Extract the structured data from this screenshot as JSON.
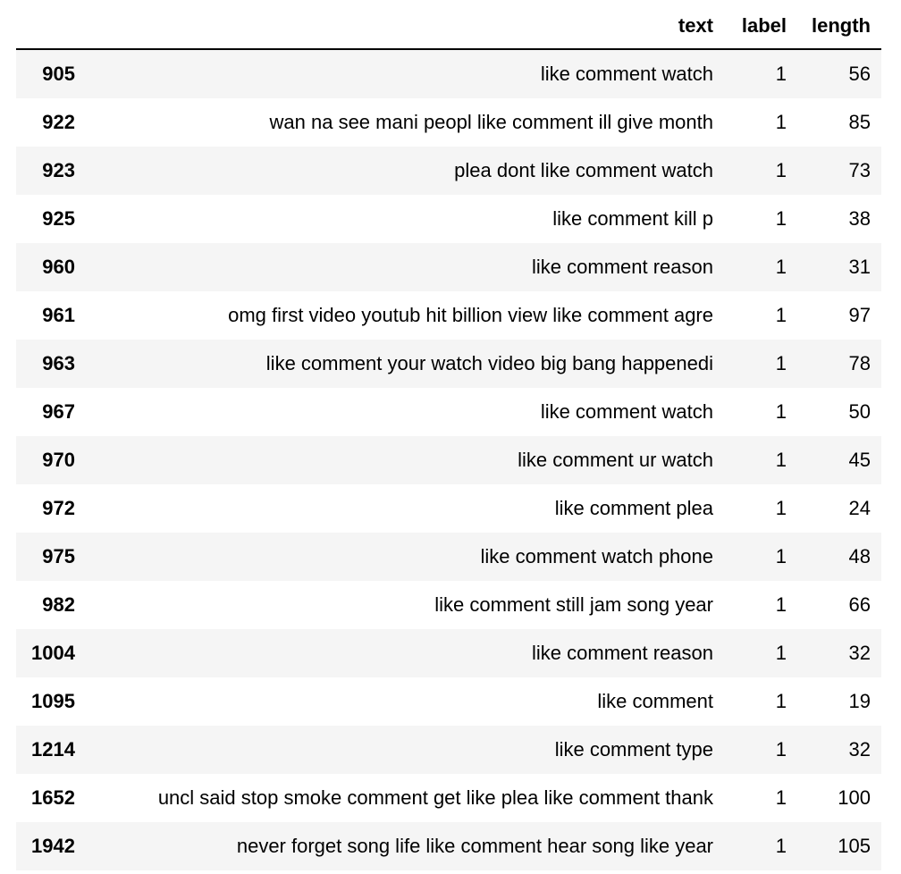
{
  "columns": {
    "index": "",
    "text": "text",
    "label": "label",
    "length": "length"
  },
  "rows": [
    {
      "index": "905",
      "text": "like comment watch",
      "label": "1",
      "length": "56"
    },
    {
      "index": "922",
      "text": "wan na see mani peopl like comment ill give month",
      "label": "1",
      "length": "85"
    },
    {
      "index": "923",
      "text": "plea dont like comment watch",
      "label": "1",
      "length": "73"
    },
    {
      "index": "925",
      "text": "like comment kill p",
      "label": "1",
      "length": "38"
    },
    {
      "index": "960",
      "text": "like comment reason",
      "label": "1",
      "length": "31"
    },
    {
      "index": "961",
      "text": "omg first video youtub hit billion view like comment agre",
      "label": "1",
      "length": "97"
    },
    {
      "index": "963",
      "text": "like comment your watch video big bang happenedi",
      "label": "1",
      "length": "78"
    },
    {
      "index": "967",
      "text": "like comment watch",
      "label": "1",
      "length": "50"
    },
    {
      "index": "970",
      "text": "like comment ur watch",
      "label": "1",
      "length": "45"
    },
    {
      "index": "972",
      "text": "like comment plea",
      "label": "1",
      "length": "24"
    },
    {
      "index": "975",
      "text": "like comment watch phone",
      "label": "1",
      "length": "48"
    },
    {
      "index": "982",
      "text": "like comment still jam song year",
      "label": "1",
      "length": "66"
    },
    {
      "index": "1004",
      "text": "like comment reason",
      "label": "1",
      "length": "32"
    },
    {
      "index": "1095",
      "text": "like comment",
      "label": "1",
      "length": "19"
    },
    {
      "index": "1214",
      "text": "like comment type",
      "label": "1",
      "length": "32"
    },
    {
      "index": "1652",
      "text": "uncl said stop smoke comment get like plea like comment thank",
      "label": "1",
      "length": "100"
    },
    {
      "index": "1942",
      "text": "never forget song life like comment hear song like year",
      "label": "1",
      "length": "105"
    }
  ]
}
